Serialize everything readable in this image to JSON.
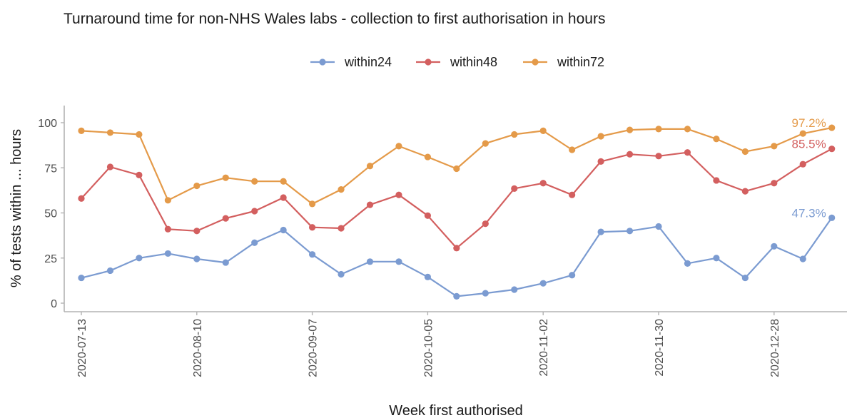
{
  "chart_data": {
    "type": "line",
    "title": "Turnaround time for non-NHS Wales labs - collection to first authorisation in hours",
    "xlabel": "Week first authorised",
    "ylabel": "% of tests within ... hours",
    "ylim": [
      0,
      100
    ],
    "y_ticks": [
      0,
      25,
      50,
      75,
      100
    ],
    "x_tick_labels": [
      "2020-07-13",
      "2020-08-10",
      "2020-09-07",
      "2020-10-05",
      "2020-11-02",
      "2020-11-30",
      "2020-12-28"
    ],
    "x_tick_indices": [
      0,
      4,
      8,
      12,
      16,
      20,
      24
    ],
    "x": [
      "2020-07-13",
      "2020-07-20",
      "2020-07-27",
      "2020-08-03",
      "2020-08-10",
      "2020-08-17",
      "2020-08-24",
      "2020-08-31",
      "2020-09-07",
      "2020-09-14",
      "2020-09-21",
      "2020-09-28",
      "2020-10-05",
      "2020-10-12",
      "2020-10-19",
      "2020-10-26",
      "2020-11-02",
      "2020-11-09",
      "2020-11-16",
      "2020-11-23",
      "2020-11-30",
      "2020-12-07",
      "2020-12-14",
      "2020-12-21",
      "2020-12-28",
      "2021-01-04",
      "2021-01-11"
    ],
    "legend_position": "top",
    "grid": false,
    "series": [
      {
        "name": "within24",
        "color": "#7b9bd1",
        "values": [
          14,
          18,
          25,
          27.5,
          24.5,
          22.5,
          33.5,
          40.5,
          27,
          16,
          23,
          23,
          14.5,
          3.8,
          5.5,
          7.5,
          11,
          15.5,
          39.5,
          40,
          42.5,
          22,
          25,
          14,
          31.5,
          24.5,
          47.3
        ],
        "end_label": "47.3%"
      },
      {
        "name": "within48",
        "color": "#d35f5f",
        "values": [
          58,
          75.5,
          71,
          41,
          40,
          47,
          51,
          58.5,
          42,
          41.5,
          54.5,
          60,
          48.5,
          30.5,
          44,
          63.5,
          66.5,
          60,
          78.5,
          82.5,
          81.5,
          83.5,
          68,
          62,
          66.5,
          77,
          85.5
        ],
        "end_label": "85.5%"
      },
      {
        "name": "within72",
        "color": "#e49a49",
        "values": [
          95.5,
          94.5,
          93.5,
          57,
          65,
          69.5,
          67.5,
          67.5,
          55,
          63,
          76,
          87,
          81,
          74.5,
          88.5,
          93.5,
          95.5,
          85,
          92.5,
          96,
          96.5,
          96.5,
          91,
          84,
          87,
          94,
          97.2
        ],
        "end_label": "97.2%"
      }
    ]
  }
}
